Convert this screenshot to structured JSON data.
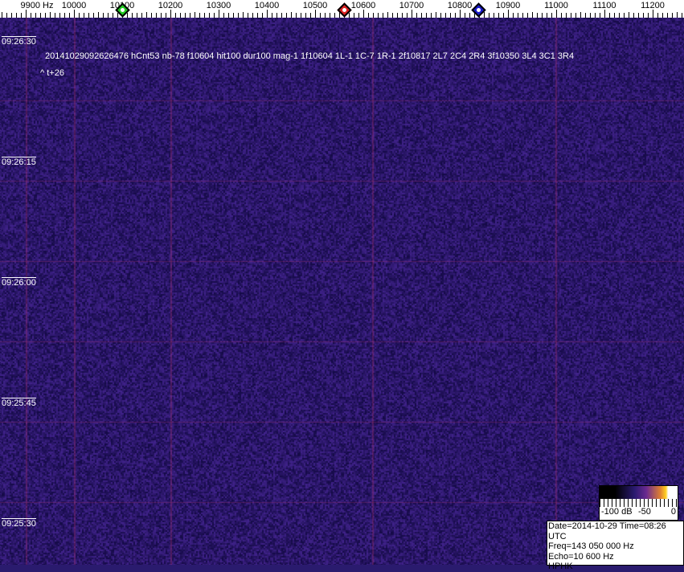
{
  "ruler": {
    "labels": [
      "9900 Hz",
      "10000",
      "10100",
      "10200",
      "10300",
      "10400",
      "10500",
      "10600",
      "10700",
      "10800",
      "10900",
      "11000",
      "11100",
      "11200"
    ],
    "start_hz": 9900,
    "step_hz": 100
  },
  "markers": [
    {
      "freq_hz": 10100,
      "color": "#22cc22"
    },
    {
      "freq_hz": 10560,
      "color": "#dd2222"
    },
    {
      "freq_hz": 10838,
      "color": "#1a1acc"
    }
  ],
  "times": [
    "09:26:30",
    "09:26:15",
    "09:26:00",
    "09:25:45",
    "09:25:30"
  ],
  "detection": {
    "line": "20141029092626476 hCnt53 nb-78 f10604 hit100 dur100 mag-1 1f10604 1L-1 1C-7 1R-1 2f10817 2L7 2C4 2R4 3f10350 3L4 3C1 3R4",
    "offset": "^ t+26"
  },
  "colorbar": {
    "labels": [
      "-100 dB",
      "-50",
      "0"
    ]
  },
  "info": {
    "date_time": "Date=2014-10-29 Time=08:26 UTC",
    "freq": "Freq=143 050 000 Hz",
    "echo": "Echo=10 600 Hz",
    "station": "HPHK"
  },
  "colors": {
    "background": "#2a1b6e",
    "grid": "#a0306a"
  }
}
